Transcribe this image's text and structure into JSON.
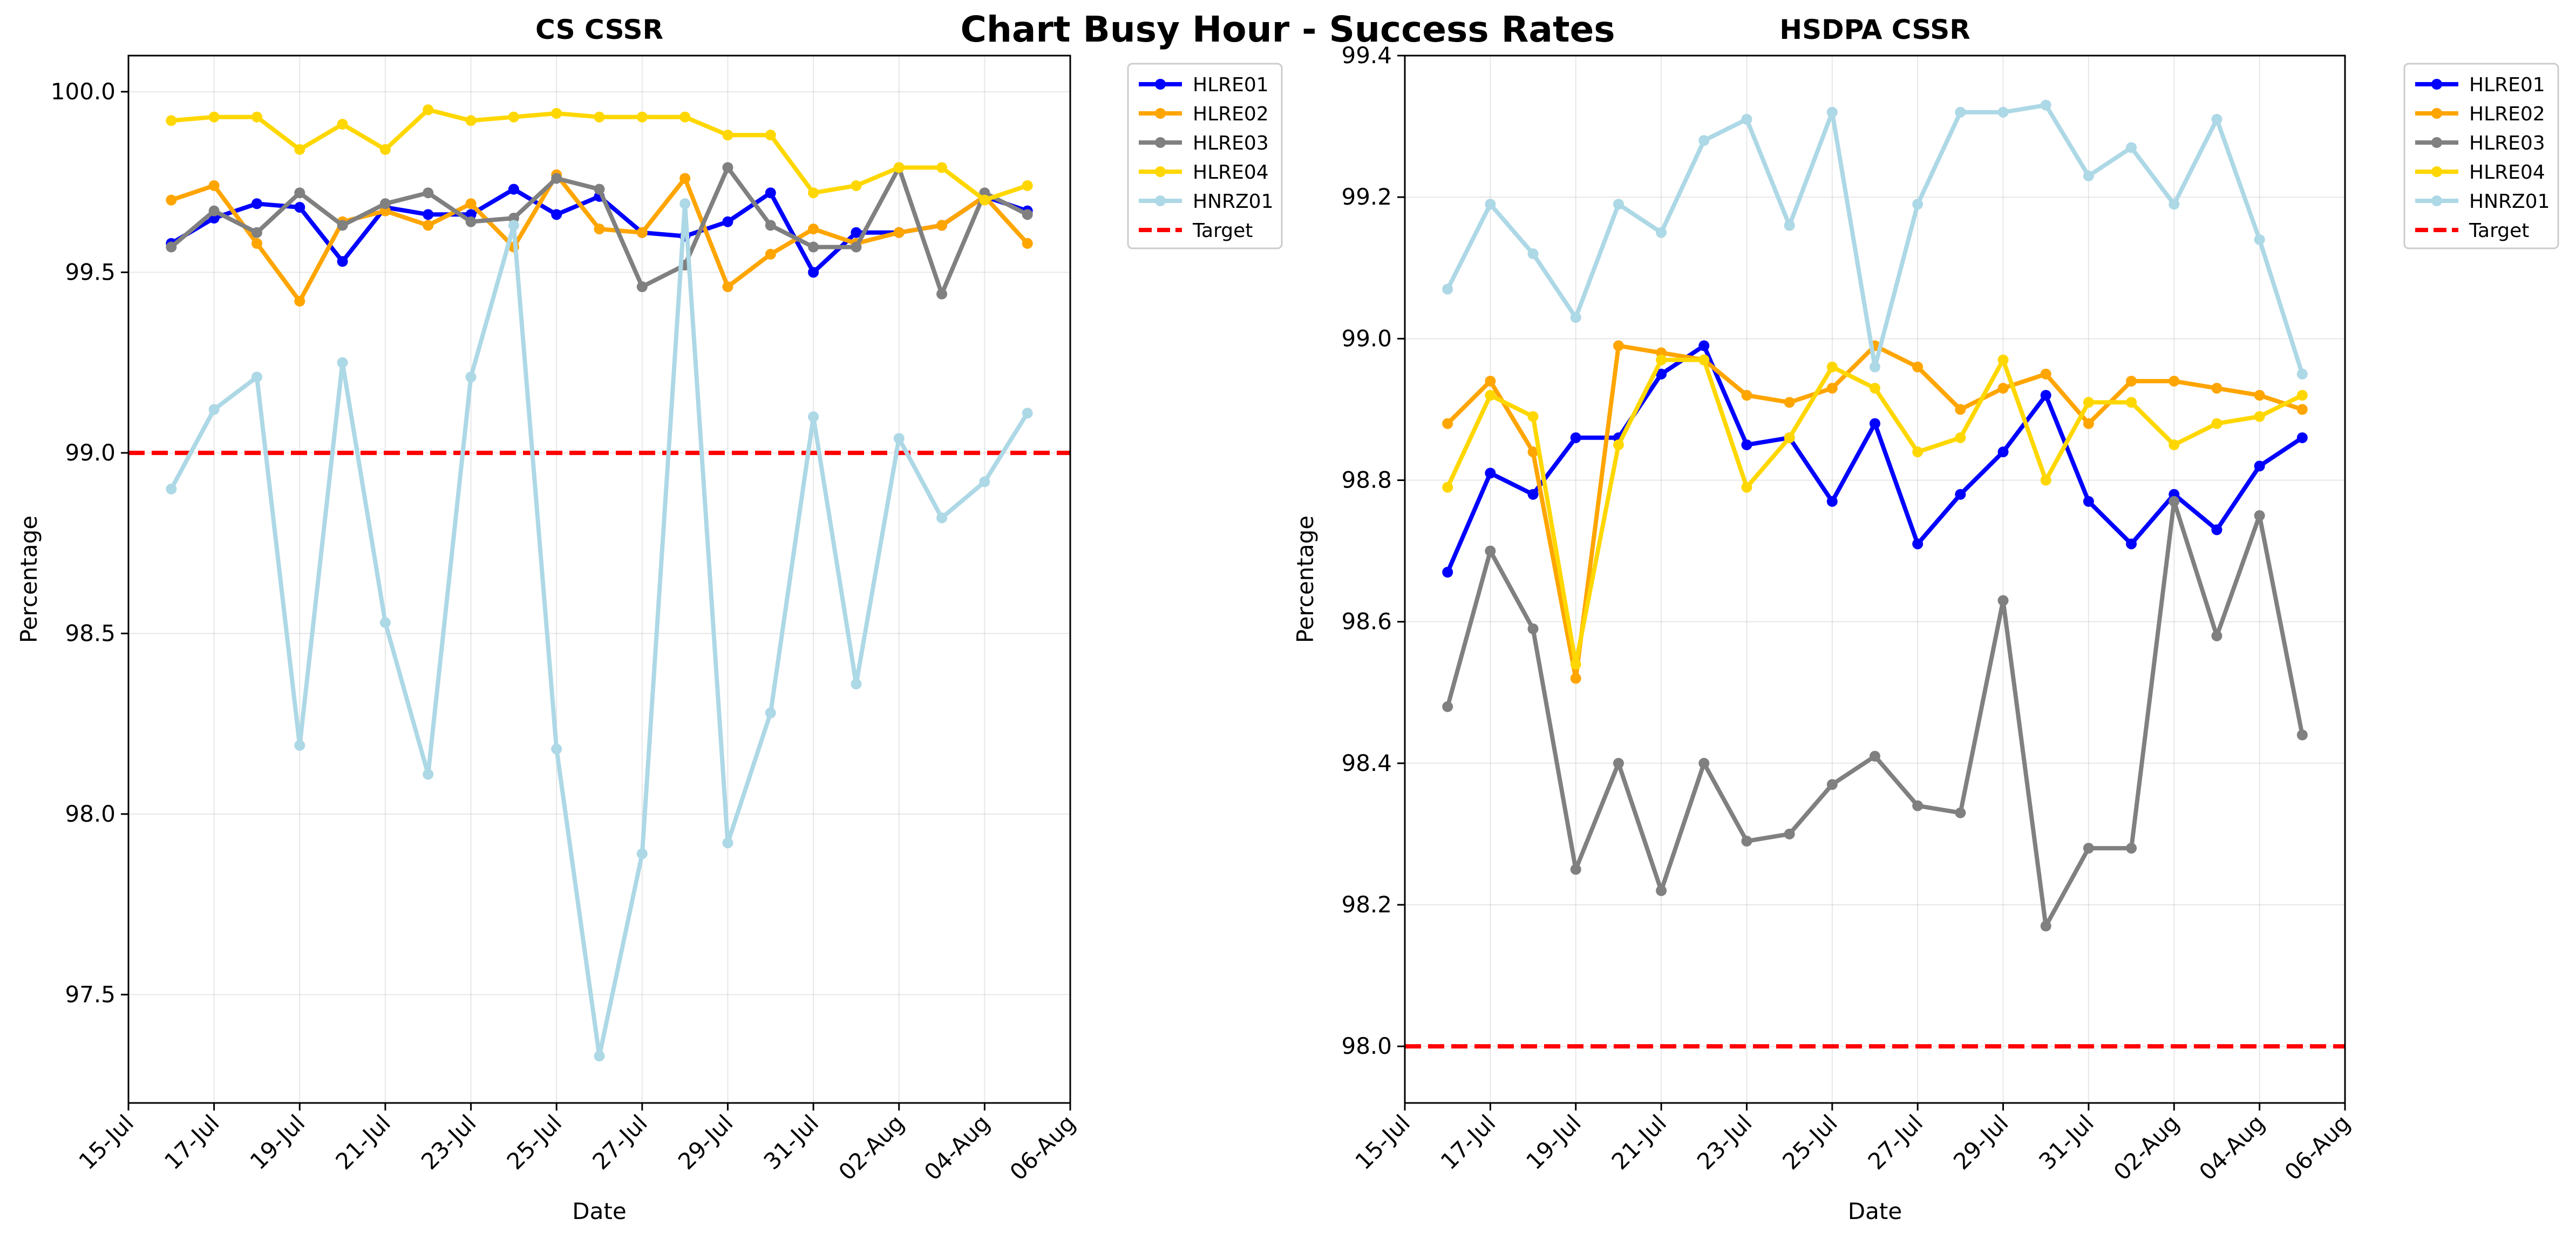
{
  "figure": {
    "title": "Chart Busy Hour - Success Rates"
  },
  "colors": {
    "HLRE01": "#0000ff",
    "HLRE02": "#ffa500",
    "HLRE03": "#808080",
    "HLRE04": "#ffd700",
    "HNRZ01": "#add8e6",
    "Target": "#ff0000"
  },
  "chart_data": [
    {
      "type": "line",
      "title": "CS CSSR",
      "xlabel": "Date",
      "ylabel": "Percentage",
      "x_unit": "date",
      "xlim": [
        "2024-07-15",
        "2024-08-06"
      ],
      "ylim": [
        97.2,
        100.1
      ],
      "x_ticks": [
        "15-Jul",
        "17-Jul",
        "19-Jul",
        "21-Jul",
        "23-Jul",
        "25-Jul",
        "27-Jul",
        "29-Jul",
        "31-Jul",
        "02-Aug",
        "04-Aug",
        "06-Aug"
      ],
      "y_ticks": [
        "97.5",
        "98.0",
        "98.5",
        "99.0",
        "99.5",
        "100.0"
      ],
      "x": [
        "2024-07-16",
        "2024-07-17",
        "2024-07-18",
        "2024-07-19",
        "2024-07-20",
        "2024-07-21",
        "2024-07-22",
        "2024-07-23",
        "2024-07-24",
        "2024-07-25",
        "2024-07-26",
        "2024-07-27",
        "2024-07-28",
        "2024-07-29",
        "2024-07-30",
        "2024-07-31",
        "2024-08-01",
        "2024-08-02",
        "2024-08-03",
        "2024-08-04",
        "2024-08-05"
      ],
      "grid": true,
      "legend_position": "outside-top-right",
      "series": [
        {
          "name": "HLRE01",
          "values": [
            99.58,
            99.65,
            99.69,
            99.68,
            99.53,
            99.68,
            99.66,
            99.66,
            99.73,
            99.66,
            99.71,
            99.61,
            99.6,
            99.64,
            99.72,
            99.5,
            99.61,
            99.61,
            99.63,
            99.71,
            99.67
          ]
        },
        {
          "name": "HLRE02",
          "values": [
            99.7,
            99.74,
            99.58,
            99.42,
            99.64,
            99.67,
            99.63,
            99.69,
            99.57,
            99.77,
            99.62,
            99.61,
            99.76,
            99.46,
            99.55,
            99.62,
            99.58,
            99.61,
            99.63,
            99.71,
            99.58
          ]
        },
        {
          "name": "HLRE03",
          "values": [
            99.57,
            99.67,
            99.61,
            99.72,
            99.63,
            99.69,
            99.72,
            99.64,
            99.65,
            99.76,
            99.73,
            99.46,
            99.52,
            99.79,
            99.63,
            99.57,
            99.57,
            99.79,
            99.44,
            99.72,
            99.66
          ]
        },
        {
          "name": "HLRE04",
          "values": [
            99.92,
            99.93,
            99.93,
            99.84,
            99.91,
            99.84,
            99.95,
            99.92,
            99.93,
            99.94,
            99.93,
            99.93,
            99.93,
            99.88,
            99.88,
            99.72,
            99.74,
            99.79,
            99.79,
            99.7,
            99.74
          ]
        },
        {
          "name": "HNRZ01",
          "values": [
            98.9,
            99.12,
            99.21,
            98.19,
            99.25,
            98.53,
            98.11,
            99.21,
            99.63,
            98.18,
            97.33,
            97.89,
            99.69,
            97.92,
            98.28,
            99.1,
            98.36,
            99.04,
            98.82,
            98.92,
            99.11
          ]
        }
      ],
      "target": {
        "name": "Target",
        "value": 99.0
      }
    },
    {
      "type": "line",
      "title": "HSDPA CSSR",
      "xlabel": "Date",
      "ylabel": "Percentage",
      "x_unit": "date",
      "xlim": [
        "2024-07-15",
        "2024-08-06"
      ],
      "ylim": [
        97.92,
        99.4
      ],
      "x_ticks": [
        "15-Jul",
        "17-Jul",
        "19-Jul",
        "21-Jul",
        "23-Jul",
        "25-Jul",
        "27-Jul",
        "29-Jul",
        "31-Jul",
        "02-Aug",
        "04-Aug",
        "06-Aug"
      ],
      "y_ticks": [
        "98.0",
        "98.2",
        "98.4",
        "98.6",
        "98.8",
        "99.0",
        "99.2",
        "99.4"
      ],
      "x": [
        "2024-07-16",
        "2024-07-17",
        "2024-07-18",
        "2024-07-19",
        "2024-07-20",
        "2024-07-21",
        "2024-07-22",
        "2024-07-23",
        "2024-07-24",
        "2024-07-25",
        "2024-07-26",
        "2024-07-27",
        "2024-07-28",
        "2024-07-29",
        "2024-07-30",
        "2024-07-31",
        "2024-08-01",
        "2024-08-02",
        "2024-08-03",
        "2024-08-04",
        "2024-08-05"
      ],
      "grid": true,
      "legend_position": "outside-top-right",
      "series": [
        {
          "name": "HLRE01",
          "values": [
            98.67,
            98.81,
            98.78,
            98.86,
            98.86,
            98.95,
            98.99,
            98.85,
            98.86,
            98.77,
            98.88,
            98.71,
            98.78,
            98.84,
            98.92,
            98.77,
            98.71,
            98.78,
            98.73,
            98.82,
            98.86
          ]
        },
        {
          "name": "HLRE02",
          "values": [
            98.88,
            98.94,
            98.84,
            98.52,
            98.99,
            98.98,
            98.97,
            98.92,
            98.91,
            98.93,
            98.99,
            98.96,
            98.9,
            98.93,
            98.95,
            98.88,
            98.94,
            98.94,
            98.93,
            98.92,
            98.9
          ]
        },
        {
          "name": "HLRE03",
          "values": [
            98.48,
            98.7,
            98.59,
            98.25,
            98.4,
            98.22,
            98.4,
            98.29,
            98.3,
            98.37,
            98.41,
            98.34,
            98.33,
            98.63,
            98.17,
            98.28,
            98.28,
            98.77,
            98.58,
            98.75,
            98.44
          ]
        },
        {
          "name": "HLRE04",
          "values": [
            98.79,
            98.92,
            98.89,
            98.54,
            98.85,
            98.97,
            98.97,
            98.79,
            98.86,
            98.96,
            98.93,
            98.84,
            98.86,
            98.97,
            98.8,
            98.91,
            98.91,
            98.85,
            98.88,
            98.89,
            98.92
          ]
        },
        {
          "name": "HNRZ01",
          "values": [
            99.07,
            99.19,
            99.12,
            99.03,
            99.19,
            99.15,
            99.28,
            99.31,
            99.16,
            99.32,
            98.96,
            99.19,
            99.32,
            99.32,
            99.33,
            99.23,
            99.27,
            99.19,
            99.31,
            99.14,
            98.95
          ]
        }
      ],
      "target": {
        "name": "Target",
        "value": 98.0
      }
    }
  ]
}
